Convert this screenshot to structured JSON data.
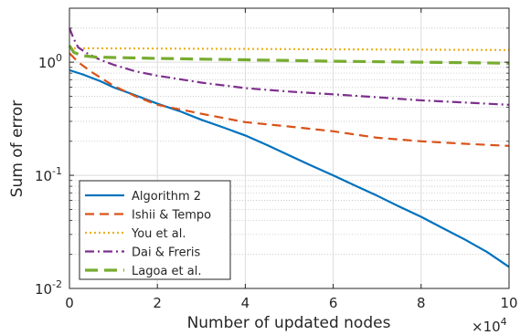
{
  "chart_data": {
    "type": "line",
    "title": "",
    "xlabel": "Number of updated nodes",
    "ylabel": "Sum of error",
    "x_multiplier_label": "×10",
    "x_multiplier_exponent": "4",
    "xlim": [
      0,
      10
    ],
    "ylim": [
      0.01,
      3
    ],
    "yscale": "log",
    "x_ticks": [
      0,
      2,
      4,
      6,
      8,
      10
    ],
    "x_tick_labels": [
      "0",
      "2",
      "4",
      "6",
      "8",
      "10"
    ],
    "y_ticks": [
      {
        "value": 0.01,
        "base": "10",
        "exp": "-2"
      },
      {
        "value": 0.1,
        "base": "10",
        "exp": "-1"
      },
      {
        "value": 1,
        "base": "10",
        "exp": "0"
      }
    ],
    "grid": true,
    "legend_position": "bottom-left",
    "series": [
      {
        "name": "Algorithm 2",
        "color": "#0072BD",
        "dash": "solid",
        "x": [
          0,
          0.3,
          0.7,
          1,
          1.5,
          2,
          2.5,
          3,
          3.5,
          4,
          4.5,
          5,
          5.5,
          6,
          6.5,
          7,
          7.5,
          8,
          8.5,
          9,
          9.5,
          10
        ],
        "y": [
          0.85,
          0.78,
          0.68,
          0.6,
          0.51,
          0.43,
          0.37,
          0.31,
          0.265,
          0.225,
          0.185,
          0.15,
          0.122,
          0.1,
          0.081,
          0.066,
          0.053,
          0.043,
          0.034,
          0.027,
          0.021,
          0.0155
        ]
      },
      {
        "name": "Ishii & Tempo",
        "color": "#D95319",
        "dash": "dashed",
        "x": [
          0,
          0.2,
          0.5,
          1,
          1.5,
          2,
          3,
          4,
          5,
          6,
          7,
          8,
          9,
          10
        ],
        "y": [
          1.2,
          1.0,
          0.82,
          0.62,
          0.5,
          0.42,
          0.35,
          0.295,
          0.27,
          0.245,
          0.215,
          0.2,
          0.19,
          0.182
        ]
      },
      {
        "name": "You et al.",
        "color": "#EDB120",
        "dash": "dotted",
        "x": [
          0,
          2,
          4,
          6,
          8,
          10
        ],
        "y": [
          1.33,
          1.32,
          1.31,
          1.3,
          1.29,
          1.28
        ]
      },
      {
        "name": "Dai & Freris",
        "color": "#7E2F8E",
        "dash": "dashdot",
        "x": [
          0,
          0.1,
          0.2,
          0.4,
          0.7,
          1,
          1.5,
          2,
          3,
          4,
          5,
          6,
          7,
          8,
          9,
          10
        ],
        "y": [
          2.0,
          1.6,
          1.35,
          1.2,
          1.05,
          0.95,
          0.83,
          0.76,
          0.66,
          0.59,
          0.55,
          0.52,
          0.49,
          0.46,
          0.44,
          0.42
        ]
      },
      {
        "name": "Lagoa et al.",
        "color": "#77AC30",
        "dash": "longdash",
        "x": [
          0,
          0.1,
          0.3,
          0.6,
          1,
          2,
          4,
          6,
          8,
          10
        ],
        "y": [
          1.4,
          1.22,
          1.14,
          1.11,
          1.1,
          1.08,
          1.05,
          1.02,
          1.0,
          0.98
        ]
      }
    ]
  }
}
